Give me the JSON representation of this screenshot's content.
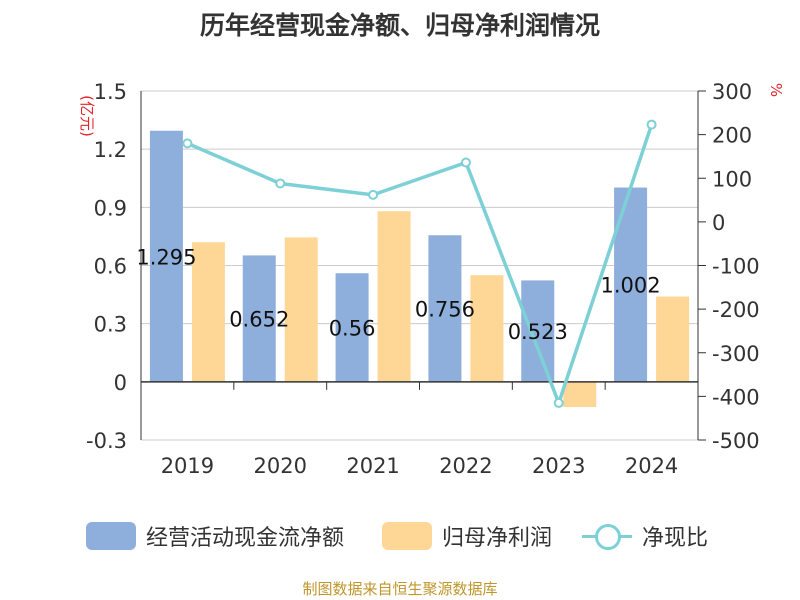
{
  "chart_data": {
    "type": "bar",
    "title": "历年经营现金净额、归母净利润情况",
    "categories": [
      "2019",
      "2020",
      "2021",
      "2022",
      "2023",
      "2024"
    ],
    "left_axis": {
      "unit_label": "(亿元)",
      "ylim": [
        -0.3,
        1.5
      ],
      "ticks": [
        "1.5",
        "1.2",
        "0.9",
        "0.6",
        "0.3",
        "0",
        "-0.3"
      ],
      "tick_values": [
        1.5,
        1.2,
        0.9,
        0.6,
        0.3,
        0,
        -0.3
      ]
    },
    "right_axis": {
      "unit_label": "%",
      "ylim": [
        -500,
        300
      ],
      "ticks": [
        "300",
        "200",
        "100",
        "0",
        "-100",
        "-200",
        "-300",
        "-400",
        "-500"
      ],
      "tick_values": [
        300,
        200,
        100,
        0,
        -100,
        -200,
        -300,
        -400,
        -500
      ]
    },
    "series": [
      {
        "name": "经营活动现金流净额",
        "type": "bar",
        "axis": "left",
        "color": "#8eaedb",
        "values": [
          1.295,
          0.652,
          0.56,
          0.756,
          0.523,
          1.002
        ],
        "labels": [
          "1.295",
          "0.652",
          "0.56",
          "0.756",
          "0.523",
          "1.002"
        ]
      },
      {
        "name": "归母净利润",
        "type": "bar",
        "axis": "left",
        "color": "#fed797",
        "values": [
          0.72,
          0.745,
          0.88,
          0.55,
          -0.13,
          0.44
        ]
      },
      {
        "name": "净现比",
        "type": "line",
        "axis": "right",
        "color": "#7dd0d6",
        "values": [
          180,
          88,
          62,
          136,
          -415,
          223
        ]
      }
    ],
    "grid": true,
    "legend_position": "bottom"
  },
  "source": "制图数据来自恒生聚源数据库"
}
